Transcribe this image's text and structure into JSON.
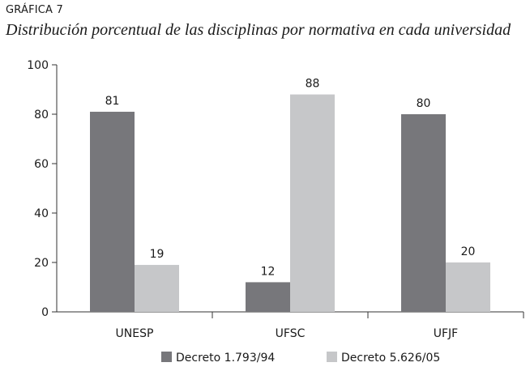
{
  "header": {
    "kicker": "GRÁFICA 7",
    "title": "Distribución porcentual de las disciplinas por normativa en cada universidad"
  },
  "chart_data": {
    "type": "bar",
    "title": "Distribución porcentual de las disciplinas por normativa en cada universidad",
    "xlabel": "",
    "ylabel": "",
    "ylim": [
      0,
      100
    ],
    "yticks": [
      0,
      20,
      40,
      60,
      80,
      100
    ],
    "grid": false,
    "legend_position": "bottom",
    "categories": [
      "UNESP",
      "UFSC",
      "UFJF"
    ],
    "series": [
      {
        "name": "Decreto 1.793/94",
        "color": "#77777b",
        "values": [
          81,
          12,
          80
        ]
      },
      {
        "name": "Decreto 5.626/05",
        "color": "#c6c7c9",
        "values": [
          19,
          88,
          20
        ]
      }
    ]
  }
}
